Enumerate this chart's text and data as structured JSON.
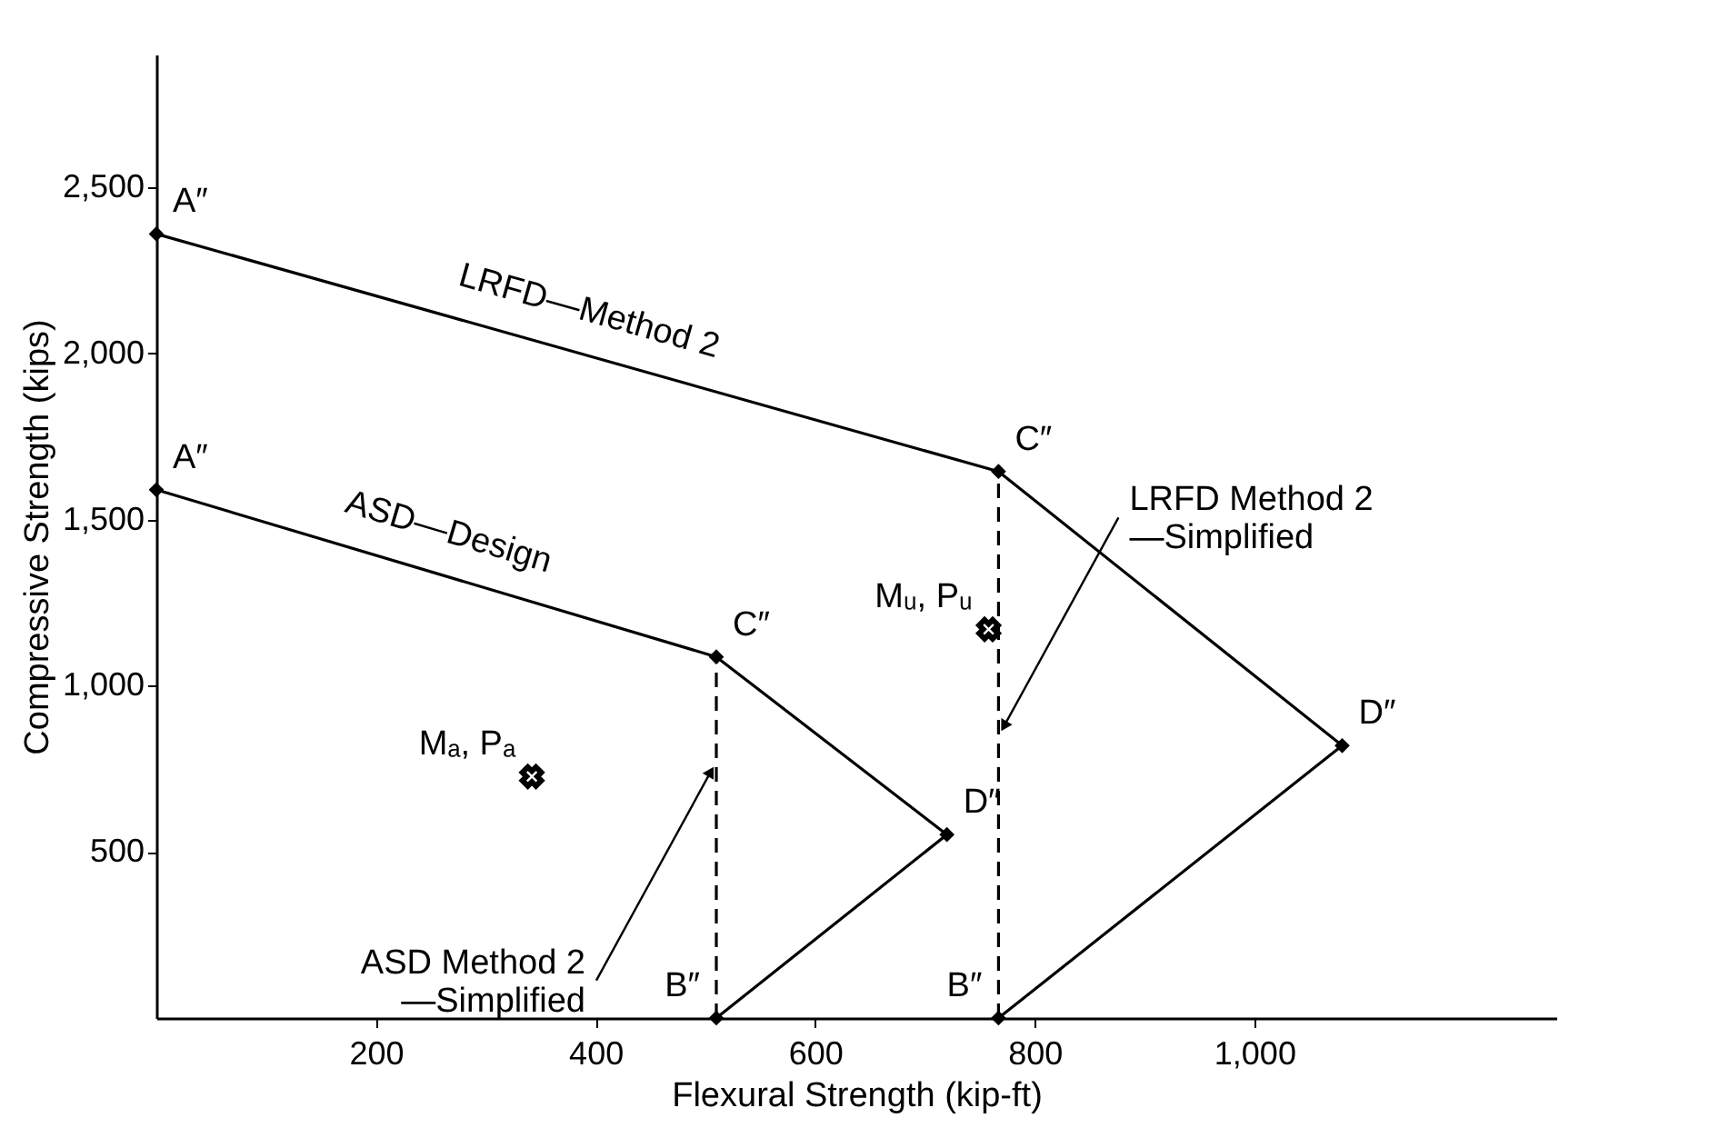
{
  "chart_data": {
    "type": "line",
    "xlabel": "Flexural Strength (kip-ft)",
    "ylabel": "Compressive Strength (kips)",
    "xlim": [
      0,
      1275
    ],
    "ylim": [
      0,
      2900
    ],
    "xticks": [
      200,
      400,
      600,
      800,
      {
        "value": 1000,
        "label": "1,000"
      }
    ],
    "yticks": [
      500,
      {
        "value": 1000,
        "label": "1,000"
      },
      {
        "value": 1500,
        "label": "1,500"
      },
      {
        "value": 2000,
        "label": "2,000"
      },
      {
        "value": 2500,
        "label": "2,500"
      }
    ],
    "grid": false,
    "marker": "diamond",
    "series": [
      {
        "name": "LRFD—Method 2",
        "color": "#000000",
        "x": [
          0,
          767,
          1080,
          767
        ],
        "values": [
          2360,
          1645,
          820,
          0
        ]
      },
      {
        "name": "ASD—Design",
        "color": "#000000",
        "x": [
          0,
          510,
          720,
          510
        ],
        "values": [
          1590,
          1087,
          552,
          0
        ]
      },
      {
        "color": "#000000",
        "x": [
          767,
          767
        ],
        "values": [
          0,
          1645
        ],
        "line_style": "dashed",
        "marker": "none"
      },
      {
        "color": "#000000",
        "x": [
          510,
          510
        ],
        "values": [
          0,
          1087
        ],
        "line_style": "dashed",
        "marker": "none"
      },
      {
        "type": "scatter",
        "color": "#000000",
        "x": [
          342,
          758
        ],
        "values": [
          727,
          1170
        ],
        "marker": "cross"
      }
    ],
    "annotations": [
      {
        "text": "A″",
        "x": 0,
        "y": 2360
      },
      {
        "text": "A″",
        "x": 0,
        "y": 1590
      },
      {
        "text": "C″",
        "x": 767,
        "y": 1645
      },
      {
        "text": "D″",
        "x": 1080,
        "y": 820
      },
      {
        "text": "B″",
        "x": 767,
        "y": 0
      },
      {
        "text": "C″",
        "x": 510,
        "y": 1087
      },
      {
        "text": "D″",
        "x": 720,
        "y": 552
      },
      {
        "text": "B″",
        "x": 510,
        "y": 0
      },
      {
        "text": "Mᵤ, Pᵤ",
        "x": 758,
        "y": 1170
      },
      {
        "text": "Mₐ, Pₐ",
        "x": 342,
        "y": 727
      },
      {
        "text": "LRFD Method 2\n—Simplified",
        "x": 767,
        "y": 850
      },
      {
        "text": "ASD Method 2\n—Simplified",
        "x": 510,
        "y": 770
      }
    ]
  }
}
